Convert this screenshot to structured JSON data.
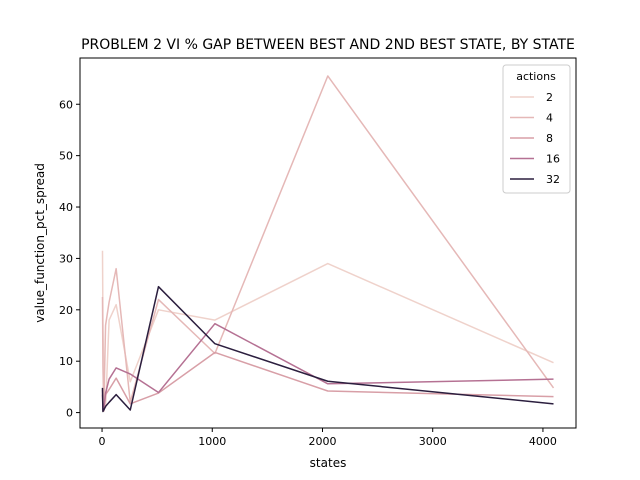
{
  "chart_data": {
    "type": "line",
    "title": "PROBLEM 2 VI % GAP BETWEEN BEST AND 2ND BEST STATE, BY STATE",
    "xlabel": "states",
    "ylabel": "value_function_pct_spread",
    "xlim": [
      -200,
      4300
    ],
    "ylim": [
      -3,
      69
    ],
    "xticks": [
      0,
      1000,
      2000,
      3000,
      4000
    ],
    "yticks": [
      0,
      10,
      20,
      30,
      40,
      50,
      60
    ],
    "grid": false,
    "legend": {
      "title": "actions",
      "placement": "top-right"
    },
    "series": [
      {
        "name": "2",
        "color": "#efd2cb",
        "points": [
          [
            4,
            31.5
          ],
          [
            8,
            18
          ],
          [
            16,
            4.5
          ],
          [
            32,
            1
          ],
          [
            64,
            18
          ],
          [
            128,
            21
          ],
          [
            256,
            6
          ],
          [
            512,
            20
          ],
          [
            1024,
            18
          ],
          [
            2048,
            29
          ],
          [
            4096,
            9.7
          ]
        ]
      },
      {
        "name": "4",
        "color": "#e5b8b7",
        "points": [
          [
            4,
            22.5
          ],
          [
            8,
            9
          ],
          [
            16,
            0.8
          ],
          [
            32,
            17
          ],
          [
            64,
            21.5
          ],
          [
            128,
            28
          ],
          [
            256,
            2
          ],
          [
            512,
            22
          ],
          [
            1024,
            11.5
          ],
          [
            2048,
            65.5
          ],
          [
            4096,
            4.8
          ]
        ]
      },
      {
        "name": "8",
        "color": "#d89fa7",
        "points": [
          [
            4,
            4.5
          ],
          [
            8,
            1.5
          ],
          [
            16,
            0.3
          ],
          [
            32,
            3.5
          ],
          [
            64,
            4.5
          ],
          [
            128,
            6.7
          ],
          [
            256,
            1.7
          ],
          [
            512,
            3.8
          ],
          [
            1024,
            11.7
          ],
          [
            2048,
            4.2
          ],
          [
            4096,
            3.1
          ]
        ]
      },
      {
        "name": "16",
        "color": "#b57193",
        "points": [
          [
            4,
            3.5
          ],
          [
            8,
            0.4
          ],
          [
            16,
            0.8
          ],
          [
            32,
            3.8
          ],
          [
            64,
            6.5
          ],
          [
            128,
            8.7
          ],
          [
            256,
            7.5
          ],
          [
            512,
            3.9
          ],
          [
            1024,
            17.3
          ],
          [
            2048,
            5.6
          ],
          [
            4096,
            6.5
          ]
        ]
      },
      {
        "name": "32",
        "color": "#2b1e3e",
        "points": [
          [
            4,
            4.8
          ],
          [
            8,
            0.2
          ],
          [
            16,
            0.5
          ],
          [
            32,
            1.2
          ],
          [
            64,
            2.0
          ],
          [
            128,
            3.5
          ],
          [
            256,
            0.5
          ],
          [
            512,
            24.5
          ],
          [
            1024,
            13.4
          ],
          [
            2048,
            6.1
          ],
          [
            4096,
            1.7
          ]
        ]
      }
    ]
  }
}
